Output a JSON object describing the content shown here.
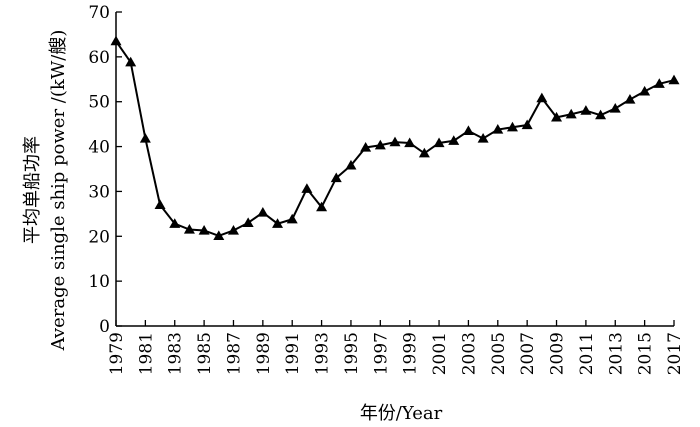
{
  "chart_data": {
    "type": "line",
    "xlabel": "年份/Year",
    "ylabel_lines": [
      "平均单船功率",
      "Average single ship power /(kW/艘)"
    ],
    "ylim": [
      0,
      70
    ],
    "yticks": [
      0,
      10,
      20,
      30,
      40,
      50,
      60,
      70
    ],
    "xlim": [
      1979,
      2017
    ],
    "xticks": [
      1979,
      1981,
      1983,
      1985,
      1987,
      1989,
      1991,
      1993,
      1995,
      1997,
      1999,
      2001,
      2003,
      2005,
      2007,
      2009,
      2011,
      2013,
      2015,
      2017
    ],
    "marker": "triangle",
    "line_color": "#000000",
    "grid": false,
    "x": [
      1979,
      1980,
      1981,
      1982,
      1983,
      1984,
      1985,
      1986,
      1987,
      1988,
      1989,
      1990,
      1991,
      1992,
      1993,
      1994,
      1995,
      1996,
      1997,
      1998,
      1999,
      2000,
      2001,
      2002,
      2003,
      2004,
      2005,
      2006,
      2007,
      2008,
      2009,
      2010,
      2011,
      2012,
      2013,
      2014,
      2015,
      2016,
      2017
    ],
    "y": [
      63.5,
      58.8,
      41.8,
      27.0,
      22.8,
      21.5,
      21.3,
      20.1,
      21.3,
      23.0,
      25.3,
      22.8,
      23.8,
      30.6,
      26.5,
      33.0,
      35.8,
      39.8,
      40.3,
      41.0,
      40.8,
      38.5,
      40.8,
      41.3,
      43.5,
      41.8,
      43.8,
      44.3,
      44.8,
      50.8,
      46.5,
      47.2,
      48.0,
      47.0,
      48.5,
      50.5,
      52.3,
      54.0,
      54.8
    ]
  }
}
